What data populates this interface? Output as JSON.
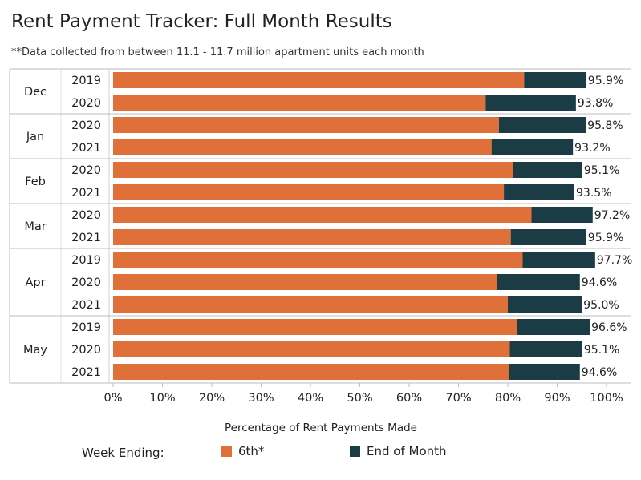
{
  "header": {
    "title": "Rent Payment Tracker: Full Month Results",
    "subtitle": "**Data collected from between 11.1 - 11.7 million apartment units each month"
  },
  "legend": {
    "title": "Week Ending:",
    "items": [
      {
        "label": "6th*",
        "color": "#E0703A"
      },
      {
        "label": "End of Month",
        "color": "#1C3C45"
      }
    ]
  },
  "chart_data": {
    "type": "bar",
    "orientation": "horizontal",
    "stacked": true,
    "xlabel": "Percentage of Rent Payments Made",
    "xlim": [
      0,
      100
    ],
    "xticks": [
      "0%",
      "10%",
      "20%",
      "30%",
      "40%",
      "50%",
      "60%",
      "70%",
      "80%",
      "90%",
      "100%"
    ],
    "series_names": [
      "6th*",
      "End of Month"
    ],
    "colors": {
      "first": "#E0703A",
      "second": "#1C3C45"
    },
    "groups": [
      {
        "month": "Dec",
        "rows": [
          {
            "year": "2019",
            "first": 83.3,
            "total": 95.9,
            "label": "95.9%"
          },
          {
            "year": "2020",
            "first": 75.5,
            "total": 93.8,
            "label": "93.8%"
          }
        ]
      },
      {
        "month": "Jan",
        "rows": [
          {
            "year": "2020",
            "first": 78.2,
            "total": 95.8,
            "label": "95.8%"
          },
          {
            "year": "2021",
            "first": 76.7,
            "total": 93.2,
            "label": "93.2%"
          }
        ]
      },
      {
        "month": "Feb",
        "rows": [
          {
            "year": "2020",
            "first": 81.0,
            "total": 95.1,
            "label": "95.1%"
          },
          {
            "year": "2021",
            "first": 79.2,
            "total": 93.5,
            "label": "93.5%"
          }
        ]
      },
      {
        "month": "Mar",
        "rows": [
          {
            "year": "2020",
            "first": 84.8,
            "total": 97.2,
            "label": "97.2%"
          },
          {
            "year": "2021",
            "first": 80.6,
            "total": 95.9,
            "label": "95.9%"
          }
        ]
      },
      {
        "month": "Apr",
        "rows": [
          {
            "year": "2019",
            "first": 83.0,
            "total": 97.7,
            "label": "97.7%"
          },
          {
            "year": "2020",
            "first": 77.8,
            "total": 94.6,
            "label": "94.6%"
          },
          {
            "year": "2021",
            "first": 80.0,
            "total": 95.0,
            "label": "95.0%"
          }
        ]
      },
      {
        "month": "May",
        "rows": [
          {
            "year": "2019",
            "first": 81.8,
            "total": 96.6,
            "label": "96.6%"
          },
          {
            "year": "2020",
            "first": 80.4,
            "total": 95.1,
            "label": "95.1%"
          },
          {
            "year": "2021",
            "first": 80.2,
            "total": 94.6,
            "label": "94.6%"
          }
        ]
      }
    ]
  }
}
